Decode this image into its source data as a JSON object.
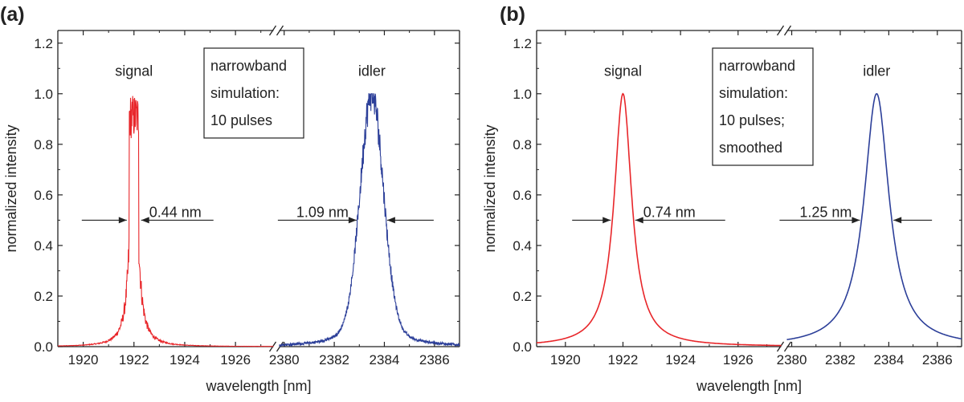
{
  "figure": {
    "panels": [
      {
        "label": "(a)",
        "annotation_lines": [
          "narrowband",
          "simulation:",
          "10 pulses"
        ],
        "signal_label": "signal",
        "idler_label": "idler",
        "signal_fwhm_label": "0.44 nm",
        "idler_fwhm_label": "1.09 nm"
      },
      {
        "label": "(b)",
        "annotation_lines": [
          "narrowband",
          "simulation:",
          "10 pulses;",
          "smoothed"
        ],
        "signal_label": "signal",
        "idler_label": "idler",
        "signal_fwhm_label": "0.74 nm",
        "idler_fwhm_label": "1.25 nm"
      }
    ]
  },
  "colors": {
    "signal": "#e8262a",
    "idler": "#2c3f99",
    "axis": "#222222"
  },
  "chart_data": [
    {
      "type": "line",
      "title": "(a)",
      "xlabel": "wavelength [nm]",
      "ylabel": "normalized intensity",
      "ylim": [
        0,
        1.25
      ],
      "yticks": [
        "0.0",
        "0.2",
        "0.4",
        "0.6",
        "0.8",
        "1.0",
        "1.2"
      ],
      "x_broken_axis": true,
      "xlim_left": [
        1919,
        1927.5
      ],
      "xlim_right": [
        2379.8,
        2387
      ],
      "xticks_left": [
        "1920",
        "1922",
        "1924",
        "1926"
      ],
      "xticks_right": [
        "2380",
        "2382",
        "2384",
        "2386"
      ],
      "series": [
        {
          "name": "signal",
          "center": 1922.0,
          "fwhm": 0.44,
          "peak": 1.0,
          "shape": "noisy",
          "note": "spiky flat-top peak near 1921.7-1922.2 nm"
        },
        {
          "name": "idler",
          "center": 2383.5,
          "fwhm": 1.09,
          "peak": 1.0,
          "shape": "noisy"
        }
      ],
      "fwhm_level": 0.5
    },
    {
      "type": "line",
      "title": "(b)",
      "xlabel": "wavelength [nm]",
      "ylabel": "normalized intensity",
      "ylim": [
        0,
        1.25
      ],
      "yticks": [
        "0.0",
        "0.2",
        "0.4",
        "0.6",
        "0.8",
        "1.0",
        "1.2"
      ],
      "x_broken_axis": true,
      "xlim_left": [
        1919,
        1927.5
      ],
      "xlim_right": [
        2379.8,
        2387
      ],
      "xticks_left": [
        "1920",
        "1922",
        "1924",
        "1926"
      ],
      "xticks_right": [
        "2380",
        "2382",
        "2384",
        "2386"
      ],
      "series": [
        {
          "name": "signal",
          "center": 1922.0,
          "fwhm": 0.74,
          "peak": 1.0,
          "shape": "smooth"
        },
        {
          "name": "idler",
          "center": 2383.5,
          "fwhm": 1.25,
          "peak": 1.0,
          "shape": "smooth"
        }
      ],
      "fwhm_level": 0.5
    }
  ]
}
